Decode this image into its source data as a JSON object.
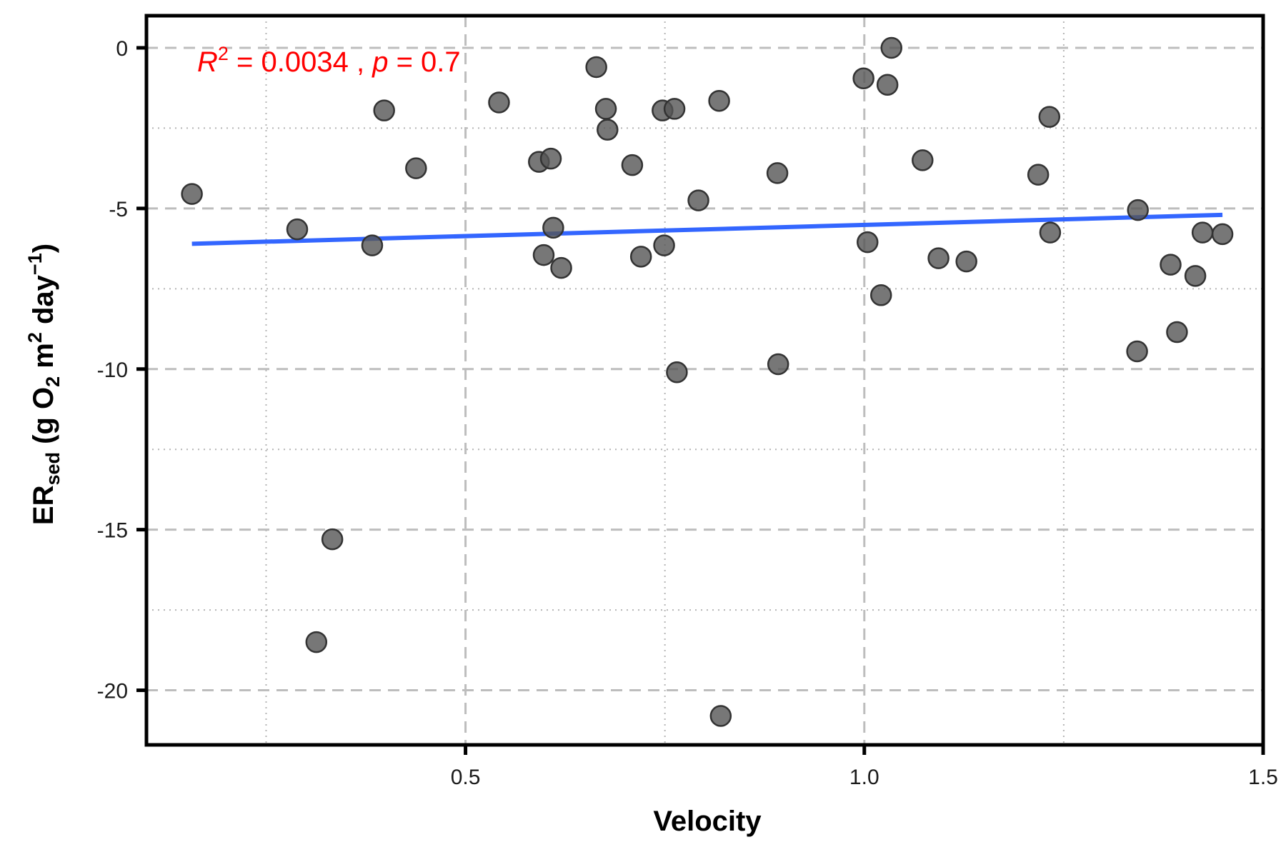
{
  "chart_data": {
    "type": "scatter",
    "title": "",
    "xlabel": "Velocity",
    "ylabel": {
      "main": "ER",
      "subscript": "sed",
      "units_open": " (g O",
      "units_o_sub": "2",
      "units_m": " m",
      "units_m_sup": "2",
      "units_day": " day",
      "units_day_sup": "−1",
      "units_close": ")"
    },
    "annotation": {
      "r_symbol": "R",
      "r_exponent": "2",
      "r_value_text": " = 0.0034 , ",
      "p_symbol": "p",
      "p_value_text": " = 0.7",
      "r_squared": 0.0034,
      "p_value": 0.7,
      "color": "#ff0000"
    },
    "xlim": [
      0.1,
      1.5
    ],
    "ylim": [
      -21.7,
      1.0
    ],
    "x_ticks": [
      0.5,
      1.0,
      1.5
    ],
    "x_tick_labels": [
      "0.5",
      "1.0",
      "1.5"
    ],
    "y_ticks": [
      0,
      -5,
      -10,
      -15,
      -20
    ],
    "y_tick_labels": [
      "0",
      "-5",
      "-10",
      "-15",
      "-20"
    ],
    "grid": true,
    "point_color": "#555555",
    "line_color": "#3366ff",
    "points": [
      {
        "x": 0.157,
        "y": -4.55
      },
      {
        "x": 0.289,
        "y": -5.65
      },
      {
        "x": 0.313,
        "y": -18.5
      },
      {
        "x": 0.333,
        "y": -15.3
      },
      {
        "x": 0.383,
        "y": -6.15
      },
      {
        "x": 0.398,
        "y": -1.95
      },
      {
        "x": 0.438,
        "y": -3.75
      },
      {
        "x": 0.542,
        "y": -1.7
      },
      {
        "x": 0.592,
        "y": -3.55
      },
      {
        "x": 0.598,
        "y": -6.45
      },
      {
        "x": 0.607,
        "y": -3.45
      },
      {
        "x": 0.61,
        "y": -5.6
      },
      {
        "x": 0.62,
        "y": -6.85
      },
      {
        "x": 0.664,
        "y": -0.6
      },
      {
        "x": 0.676,
        "y": -1.9
      },
      {
        "x": 0.678,
        "y": -2.55
      },
      {
        "x": 0.709,
        "y": -3.65
      },
      {
        "x": 0.72,
        "y": -6.5
      },
      {
        "x": 0.747,
        "y": -1.95
      },
      {
        "x": 0.749,
        "y": -6.15
      },
      {
        "x": 0.762,
        "y": -1.9
      },
      {
        "x": 0.765,
        "y": -10.1
      },
      {
        "x": 0.792,
        "y": -4.75
      },
      {
        "x": 0.818,
        "y": -1.65
      },
      {
        "x": 0.82,
        "y": -20.8
      },
      {
        "x": 0.891,
        "y": -3.9
      },
      {
        "x": 0.892,
        "y": -9.85
      },
      {
        "x": 0.999,
        "y": -0.95
      },
      {
        "x": 1.004,
        "y": -6.05
      },
      {
        "x": 1.021,
        "y": -7.7
      },
      {
        "x": 1.029,
        "y": -1.15
      },
      {
        "x": 1.034,
        "y": 0.0
      },
      {
        "x": 1.073,
        "y": -3.5
      },
      {
        "x": 1.093,
        "y": -6.55
      },
      {
        "x": 1.128,
        "y": -6.65
      },
      {
        "x": 1.218,
        "y": -3.95
      },
      {
        "x": 1.232,
        "y": -2.15
      },
      {
        "x": 1.233,
        "y": -5.75
      },
      {
        "x": 1.342,
        "y": -9.45
      },
      {
        "x": 1.343,
        "y": -5.05
      },
      {
        "x": 1.384,
        "y": -6.75
      },
      {
        "x": 1.392,
        "y": -8.85
      },
      {
        "x": 1.415,
        "y": -7.1
      },
      {
        "x": 1.424,
        "y": -5.75
      },
      {
        "x": 1.449,
        "y": -5.8
      }
    ],
    "fit_line": {
      "x": [
        0.157,
        1.449
      ],
      "y": [
        -6.1,
        -5.2
      ]
    }
  }
}
